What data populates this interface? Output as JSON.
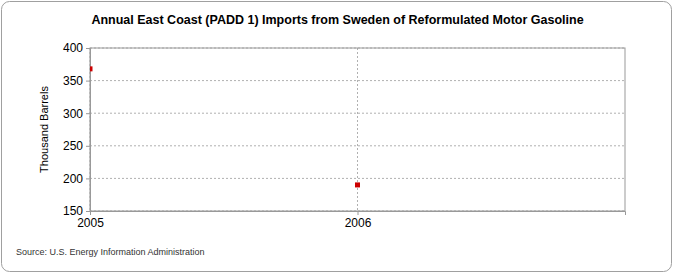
{
  "chart_data": {
    "type": "scatter",
    "title": "Annual East Coast (PADD 1) Imports from Sweden of Reformulated Motor Gasoline",
    "y_label": "Thousand Barrels",
    "source": "Source: U.S. Energy Information Administration",
    "x": [
      2005,
      2006
    ],
    "values": [
      368,
      190
    ],
    "color": "#cc0000",
    "marker": "square",
    "xlim": [
      2005,
      2007
    ],
    "xticks": [
      2005,
      2006
    ],
    "ylim": [
      150,
      400
    ],
    "yticks": [
      150,
      200,
      250,
      300,
      350,
      400
    ],
    "grid": true
  }
}
